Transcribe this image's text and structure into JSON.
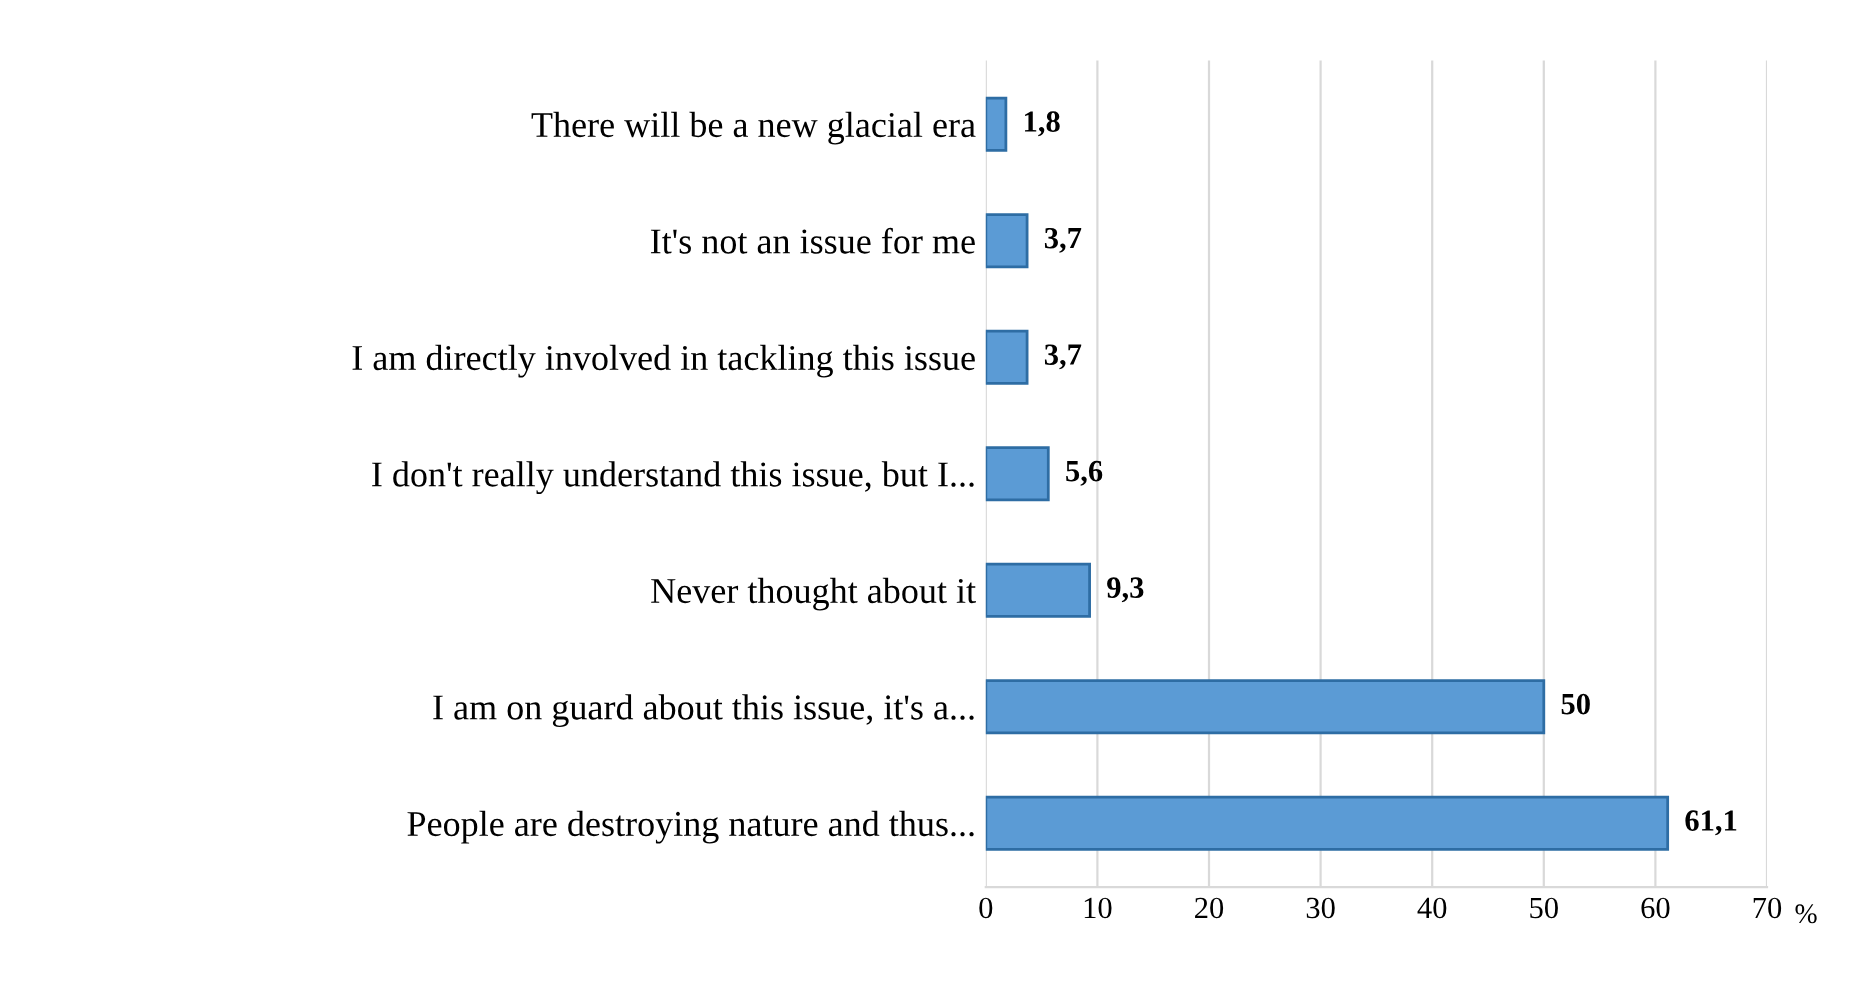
{
  "chart_data": {
    "type": "bar",
    "orientation": "horizontal",
    "categories": [
      "There will be a new glacial era",
      "It's not an issue for me",
      "I am directly involved in tackling this issue",
      "I don't really understand this issue, but I...",
      "Never thought about it",
      "I am on guard about this issue, it's a...",
      "People are destroying nature and thus..."
    ],
    "values": [
      1.8,
      3.7,
      3.7,
      5.6,
      9.3,
      50,
      61.1
    ],
    "value_labels": [
      "1,8",
      "3,7",
      "3,7",
      "5,6",
      "9,3",
      "50",
      "61,1"
    ],
    "color": "#5b9bd5",
    "xlim": [
      0,
      70
    ],
    "xticks": [
      0,
      10,
      20,
      30,
      40,
      50,
      60,
      70
    ],
    "xlabel": "%",
    "grid": "x"
  }
}
